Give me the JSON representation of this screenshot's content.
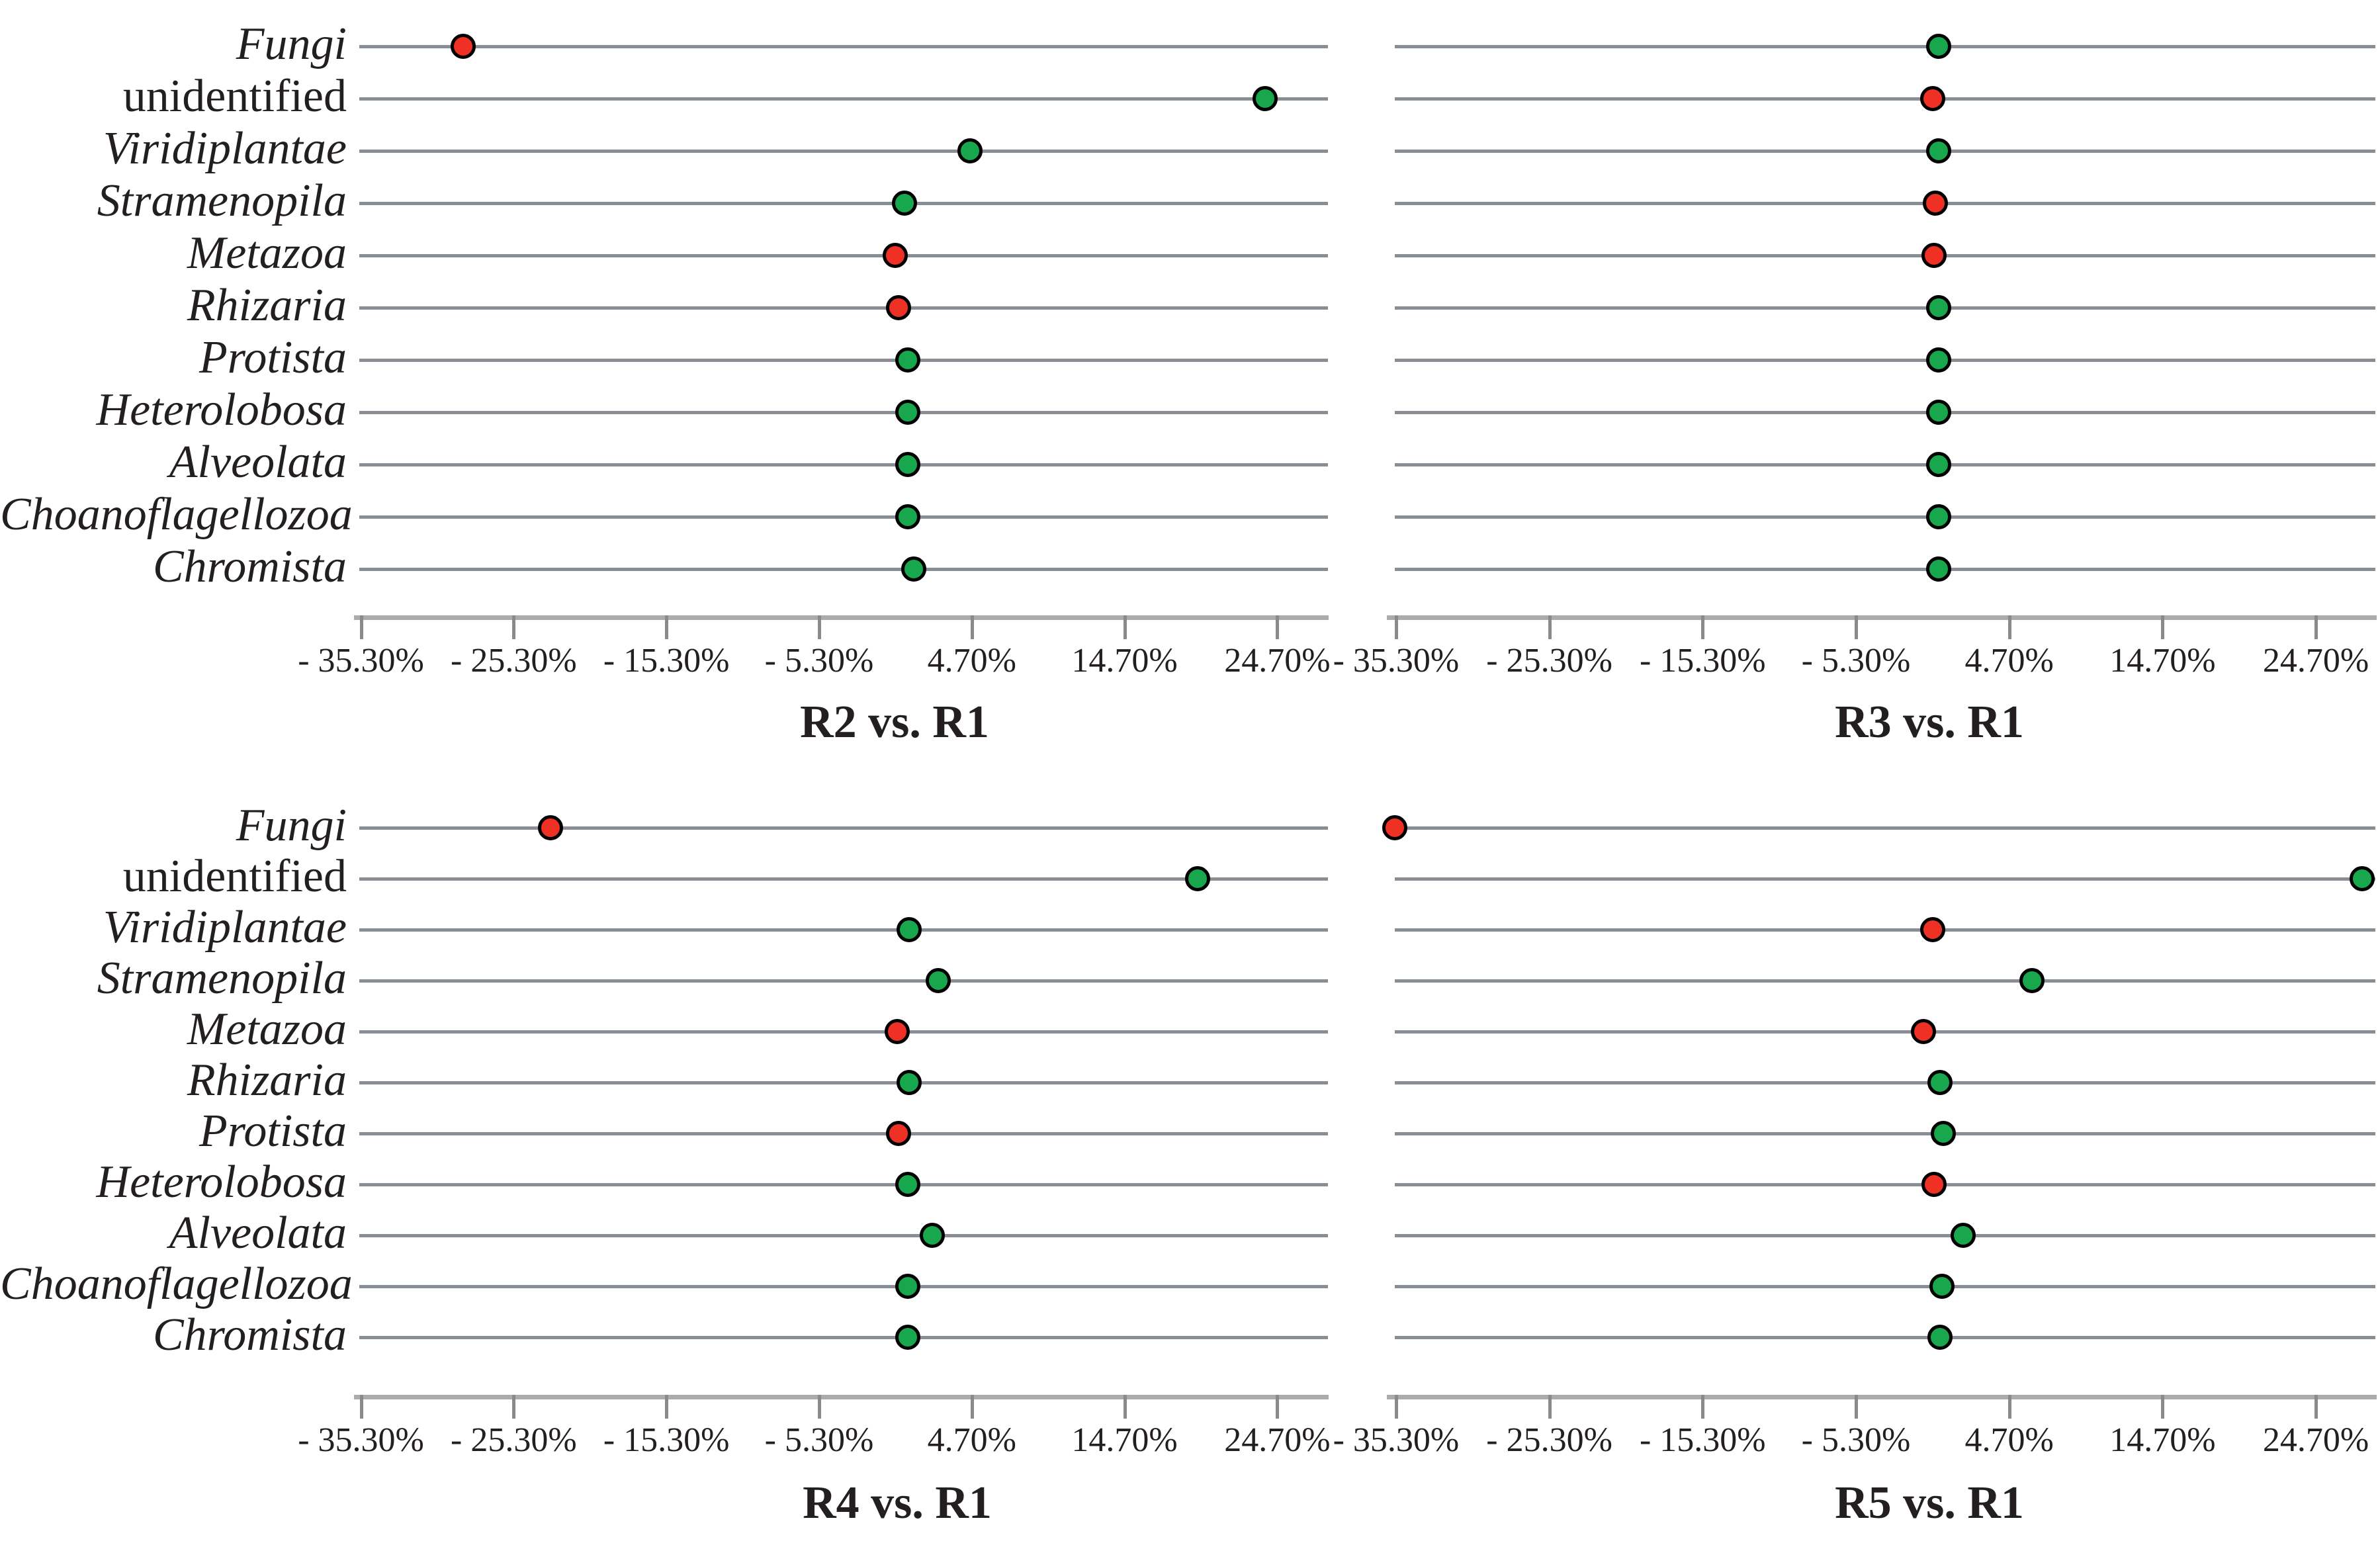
{
  "figure": {
    "background": "#ffffff",
    "description": "Four dot plots comparing relative abundance change of taxa between samples"
  },
  "colors": {
    "increase_dot": "#18A74C",
    "decrease_dot": "#EE3124",
    "dot_outline": "#000000",
    "row_line": "#898D94",
    "axis_line": "#ABABAB",
    "tick_mark": "#8A8A8A",
    "text": "#231F20"
  },
  "categories": [
    {
      "label": "Fungi",
      "italic": true
    },
    {
      "label": "unidentified",
      "italic": false
    },
    {
      "label": "Viridiplantae",
      "italic": true
    },
    {
      "label": "Stramenopila",
      "italic": true
    },
    {
      "label": "Metazoa",
      "italic": true
    },
    {
      "label": "Rhizaria",
      "italic": true
    },
    {
      "label": "Protista",
      "italic": true
    },
    {
      "label": "Heterolobosa",
      "italic": true
    },
    {
      "label": "Alveolata",
      "italic": true
    },
    {
      "label": "Choanoflagellozoa",
      "italic": true
    },
    {
      "label": "Chromista",
      "italic": true
    }
  ],
  "axis": {
    "tick_labels": [
      "- 35.30%",
      "- 25.30%",
      "- 15.30%",
      "- 5.30%",
      "4.70%",
      "14.70%",
      "24.70%"
    ],
    "tick_values": [
      -35.3,
      -25.3,
      -15.3,
      -5.3,
      4.7,
      14.7,
      24.7
    ],
    "unit": "%",
    "xlim": [
      -35.9,
      28.2
    ]
  },
  "chart_data": [
    {
      "type": "scatter",
      "title": "R2 vs. R1",
      "categories": [
        "Fungi",
        "unidentified",
        "Viridiplantae",
        "Stramenopila",
        "Metazoa",
        "Rhizaria",
        "Protista",
        "Heterolobosa",
        "Alveolata",
        "Choanoflagellozoa",
        "Chromista"
      ],
      "values": [
        -28.6,
        23.9,
        4.6,
        0.3,
        -0.3,
        -0.1,
        0.5,
        0.5,
        0.5,
        0.5,
        0.9
      ],
      "point_colors": [
        "red",
        "green",
        "green",
        "green",
        "red",
        "red",
        "green",
        "green",
        "green",
        "green",
        "green"
      ],
      "xlabel": "",
      "ylabel": "",
      "legend": "none",
      "grid": "row-lines"
    },
    {
      "type": "scatter",
      "title": "R3 vs. R1",
      "categories": [
        "Fungi",
        "unidentified",
        "Viridiplantae",
        "Stramenopila",
        "Metazoa",
        "Rhizaria",
        "Protista",
        "Heterolobosa",
        "Alveolata",
        "Choanoflagellozoa",
        "Chromista"
      ],
      "values": [
        0.1,
        -0.3,
        0.1,
        -0.1,
        -0.2,
        0.1,
        0.1,
        0.1,
        0.1,
        0.1,
        0.1
      ],
      "point_colors": [
        "green",
        "red",
        "green",
        "red",
        "red",
        "green",
        "green",
        "green",
        "green",
        "green",
        "green"
      ],
      "xlabel": "",
      "ylabel": "",
      "legend": "none",
      "grid": "row-lines"
    },
    {
      "type": "scatter",
      "title": "R4 vs. R1",
      "categories": [
        "Fungi",
        "unidentified",
        "Viridiplantae",
        "Stramenopila",
        "Metazoa",
        "Rhizaria",
        "Protista",
        "Heterolobosa",
        "Alveolata",
        "Choanoflagellozoa",
        "Chromista"
      ],
      "values": [
        -22.9,
        19.5,
        0.6,
        2.5,
        -0.2,
        0.6,
        -0.1,
        0.5,
        2.1,
        0.5,
        0.5
      ],
      "point_colors": [
        "red",
        "green",
        "green",
        "green",
        "red",
        "green",
        "red",
        "green",
        "green",
        "green",
        "green"
      ],
      "xlabel": "",
      "ylabel": "",
      "legend": "none",
      "grid": "row-lines"
    },
    {
      "type": "scatter",
      "title": "R5 vs. R1",
      "categories": [
        "Fungi",
        "unidentified",
        "Viridiplantae",
        "Stramenopila",
        "Metazoa",
        "Rhizaria",
        "Protista",
        "Heterolobosa",
        "Alveolata",
        "Choanoflagellozoa",
        "Chromista"
      ],
      "values": [
        -35.4,
        27.7,
        -0.3,
        6.2,
        -0.9,
        0.2,
        0.4,
        -0.2,
        1.7,
        0.3,
        0.2
      ],
      "point_colors": [
        "red",
        "green",
        "red",
        "green",
        "red",
        "green",
        "green",
        "red",
        "green",
        "green",
        "green"
      ],
      "xlabel": "",
      "ylabel": "",
      "legend": "none",
      "grid": "row-lines"
    }
  ]
}
